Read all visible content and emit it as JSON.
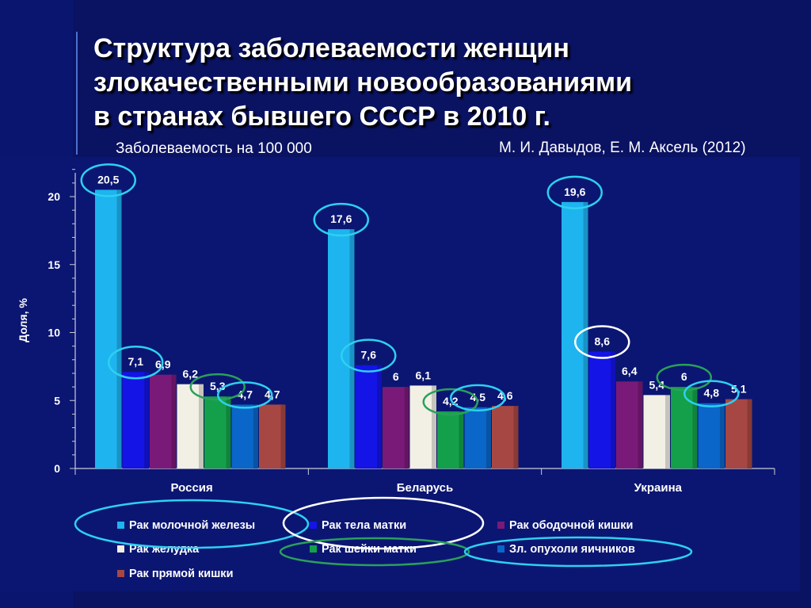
{
  "slide": {
    "title_lines": [
      "Структура заболеваемости женщин",
      "злокачественными новообразованиями",
      "в странах бывшего СССР в 2010 г."
    ],
    "subtitle": "Заболеваемость на 100 000",
    "source": "М. И. Давыдов, Е. М. Аксель (2012)"
  },
  "colors": {
    "breast": "#1eb4ef",
    "uterus_body": "#1414e6",
    "colon": "#7a1a78",
    "stomach": "#f2f0e4",
    "cervix": "#14a04a",
    "ovary": "#0a66c8",
    "rectum": "#a74743",
    "highlight_cyan": "#2ed0f0",
    "highlight_green": "#2aa05a",
    "highlight_white": "#ffffff"
  },
  "chart_data": {
    "type": "bar",
    "categories": [
      "Россия",
      "Беларусь",
      "Украина"
    ],
    "ylabel": "Доля, %",
    "ylim": [
      0,
      22
    ],
    "yticks": [
      0,
      5,
      10,
      15,
      20
    ],
    "series": [
      {
        "name": "Рак молочной железы",
        "key": "breast",
        "values": [
          20.5,
          17.6,
          19.6
        ],
        "labels": [
          "20,5",
          "17,6",
          "19,6"
        ]
      },
      {
        "name": "Рак тела матки",
        "key": "uterus_body",
        "values": [
          7.1,
          7.6,
          8.6
        ],
        "labels": [
          "7,1",
          "7,6",
          "8,6"
        ]
      },
      {
        "name": "Рак ободочной кишки",
        "key": "colon",
        "values": [
          6.9,
          6,
          6.4
        ],
        "labels": [
          "6,9",
          "6",
          "6,4"
        ]
      },
      {
        "name": "Рак желудка",
        "key": "stomach",
        "values": [
          6.2,
          6.1,
          5.4
        ],
        "labels": [
          "6,2",
          "6,1",
          "5,4"
        ]
      },
      {
        "name": "Рак шейки матки",
        "key": "cervix",
        "values": [
          5.3,
          4.2,
          6
        ],
        "labels": [
          "5,3",
          "4,2",
          "6"
        ]
      },
      {
        "name": "Зл. опухоли яичников",
        "key": "ovary",
        "values": [
          4.7,
          4.5,
          4.8
        ],
        "labels": [
          "4,7",
          "4,5",
          "4,8"
        ]
      },
      {
        "name": "Рак прямой кишки",
        "key": "rectum",
        "values": [
          4.7,
          4.6,
          5.1
        ],
        "labels": [
          "4,7",
          "4,6",
          "5,1"
        ]
      }
    ],
    "legend_placement": "bottom"
  }
}
